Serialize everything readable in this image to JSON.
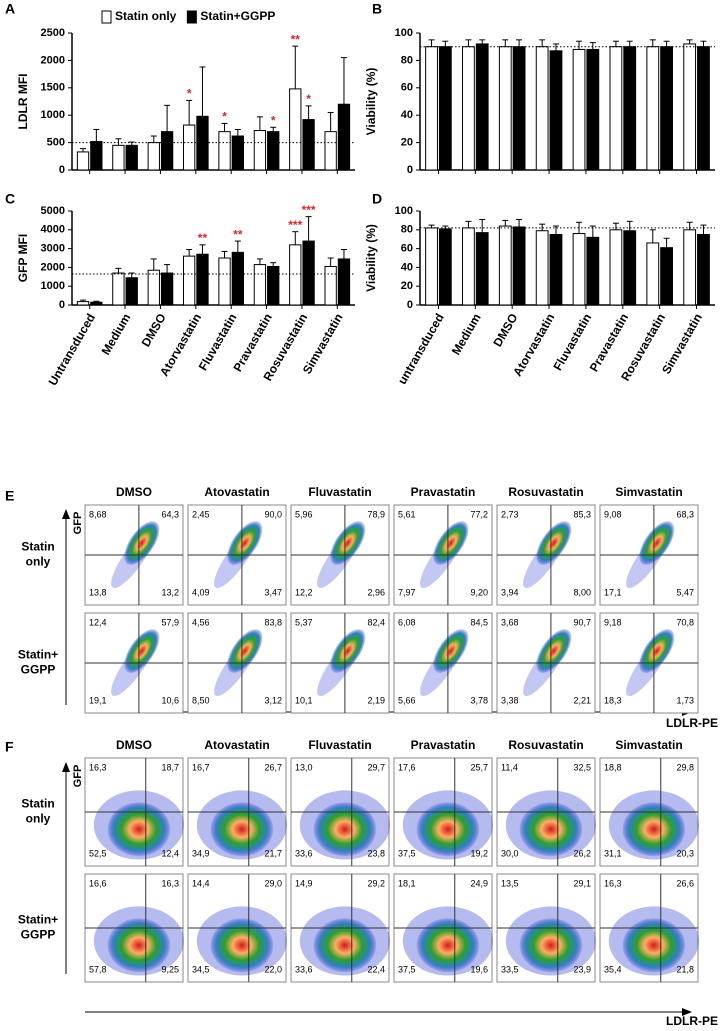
{
  "chart_data": [
    {
      "type": "bar",
      "label": "A",
      "y_label": "LDLR MFI",
      "categories": [
        null,
        null,
        null,
        null,
        null,
        null,
        null,
        null
      ],
      "series": [
        {
          "name": "Statin only",
          "color": "#ffffff",
          "values": [
            330,
            450,
            500,
            820,
            700,
            720,
            1480,
            700
          ],
          "errors": [
            60,
            120,
            120,
            450,
            150,
            250,
            780,
            350
          ],
          "annotations": [
            null,
            null,
            null,
            "*",
            "*",
            null,
            "**",
            null
          ]
        },
        {
          "name": "Statin+GGPP",
          "color": "#000000",
          "values": [
            520,
            450,
            700,
            980,
            620,
            700,
            920,
            1200
          ],
          "errors": [
            220,
            60,
            480,
            900,
            120,
            80,
            250,
            850
          ],
          "annotations": [
            null,
            null,
            null,
            null,
            null,
            "*",
            "*",
            null
          ]
        }
      ],
      "ylim": [
        0,
        2500
      ],
      "yticks": [
        0,
        500,
        1000,
        1500,
        2000,
        2500
      ],
      "ref_line": 500,
      "legend": "top"
    },
    {
      "type": "bar",
      "label": "B",
      "y_label": "Viability (%)",
      "categories": [
        null,
        null,
        null,
        null,
        null,
        null,
        null,
        null
      ],
      "series": [
        {
          "name": "Statin only",
          "color": "#ffffff",
          "values": [
            90,
            90,
            90,
            90,
            88,
            90,
            90,
            92
          ],
          "errors": [
            5,
            5,
            5,
            5,
            6,
            4,
            5,
            3
          ]
        },
        {
          "name": "Statin+GGPP",
          "color": "#000000",
          "values": [
            90,
            92,
            90,
            87,
            88,
            90,
            90,
            90
          ],
          "errors": [
            4,
            3,
            5,
            5,
            5,
            4,
            4,
            4
          ]
        }
      ],
      "ylim": [
        0,
        100
      ],
      "yticks": [
        0,
        20,
        40,
        60,
        80,
        100
      ],
      "ref_line": 90
    },
    {
      "type": "bar",
      "label": "C",
      "y_label": "GFP MFI",
      "categories": [
        "Untransduced",
        "Medium",
        "DMSO",
        "Atorvastatin",
        "Fluvastatin",
        "Pravastatin",
        "Rosuvastatin",
        "Simvastatin"
      ],
      "series": [
        {
          "name": "Statin only",
          "color": "#ffffff",
          "values": [
            180,
            1700,
            1850,
            2600,
            2500,
            2150,
            3200,
            2050
          ],
          "errors": [
            80,
            250,
            600,
            350,
            350,
            300,
            700,
            450
          ],
          "annotations": [
            null,
            null,
            null,
            null,
            null,
            null,
            "***",
            null
          ]
        },
        {
          "name": "Statin+GGPP",
          "color": "#000000",
          "values": [
            150,
            1450,
            1700,
            2700,
            2800,
            2050,
            3400,
            2450
          ],
          "errors": [
            50,
            250,
            450,
            500,
            600,
            200,
            1300,
            500
          ],
          "annotations": [
            null,
            null,
            null,
            "**",
            "**",
            null,
            "***",
            null
          ]
        }
      ],
      "ylim": [
        0,
        5000
      ],
      "yticks": [
        0,
        1000,
        2000,
        3000,
        4000,
        5000
      ],
      "ref_line": 1650
    },
    {
      "type": "bar",
      "label": "D",
      "y_label": "Viability (%)",
      "categories": [
        "untransduced",
        "Medium",
        "DMSO",
        "Atorvastatin",
        "Fluvastatin",
        "Pravastatin",
        "Rosuvastatin",
        "Simvastatin"
      ],
      "series": [
        {
          "name": "Statin only",
          "color": "#ffffff",
          "values": [
            82,
            82,
            84,
            79,
            76,
            80,
            66,
            80
          ],
          "errors": [
            3,
            7,
            6,
            7,
            12,
            7,
            14,
            8
          ]
        },
        {
          "name": "Statin+GGPP",
          "color": "#000000",
          "values": [
            81,
            77,
            83,
            75,
            72,
            79,
            61,
            75
          ],
          "errors": [
            3,
            14,
            8,
            9,
            12,
            10,
            10,
            10
          ]
        }
      ],
      "ylim": [
        0,
        100
      ],
      "yticks": [
        0,
        20,
        40,
        60,
        80,
        100
      ],
      "ref_line": 82
    }
  ],
  "flow_panels": [
    {
      "label": "E",
      "y_axis": "GFP",
      "x_axis": "LDLR-PE",
      "columns": [
        "DMSO",
        "Atovastatin",
        "Fluvastatin",
        "Pravastatin",
        "Rosuvastatin",
        "Simvastatin"
      ],
      "row_labels": [
        [
          "Statin",
          "only"
        ],
        [
          "Statin+",
          "GGPP"
        ]
      ],
      "cells": [
        [
          [
            "8,68",
            "64,3",
            "13,8",
            "13,2"
          ],
          [
            "2,45",
            "90,0",
            "4,09",
            "3,47"
          ],
          [
            "5,96",
            "78,9",
            "12,2",
            "2,96"
          ],
          [
            "5,61",
            "77,2",
            "7,97",
            "9,20"
          ],
          [
            "2,73",
            "85,3",
            "3,94",
            "8,00"
          ],
          [
            "9,08",
            "68,3",
            "17,1",
            "5,47"
          ]
        ],
        [
          [
            "12,4",
            "57,9",
            "19,1",
            "10,6"
          ],
          [
            "4,56",
            "83,8",
            "8,50",
            "3,12"
          ],
          [
            "5,37",
            "82,4",
            "10,1",
            "2,19"
          ],
          [
            "6,08",
            "84,5",
            "5,66",
            "3,78"
          ],
          [
            "3,68",
            "90,7",
            "3,38",
            "2,21"
          ],
          [
            "9,18",
            "70,8",
            "18,3",
            "1,73"
          ]
        ]
      ]
    },
    {
      "label": "F",
      "y_axis": "GFP",
      "x_axis": "LDLR-PE",
      "columns": [
        "DMSO",
        "Atovastatin",
        "Fluvastatin",
        "Pravastatin",
        "Rosuvastatin",
        "Simvastatin"
      ],
      "row_labels": [
        [
          "Statin",
          "only"
        ],
        [
          "Statin+",
          "GGPP"
        ]
      ],
      "cells": [
        [
          [
            "16,3",
            "18,7",
            "52,5",
            "12,4"
          ],
          [
            "16,7",
            "26,7",
            "34,9",
            "21,7"
          ],
          [
            "13,0",
            "29,7",
            "33,6",
            "23,8"
          ],
          [
            "17,6",
            "25,7",
            "37,5",
            "19,2"
          ],
          [
            "11,4",
            "32,5",
            "30,0",
            "26,2"
          ],
          [
            "18,8",
            "29,8",
            "31,1",
            "20,3"
          ]
        ],
        [
          [
            "16,6",
            "16,3",
            "57,8",
            "9,25"
          ],
          [
            "14,4",
            "29,0",
            "34,5",
            "22,0"
          ],
          [
            "14,9",
            "29,2",
            "33,6",
            "22,4"
          ],
          [
            "18,1",
            "24,9",
            "37,5",
            "19,6"
          ],
          [
            "13,5",
            "29,1",
            "33,5",
            "23,9"
          ],
          [
            "16,3",
            "26,6",
            "35,4",
            "21,8"
          ]
        ]
      ]
    }
  ]
}
